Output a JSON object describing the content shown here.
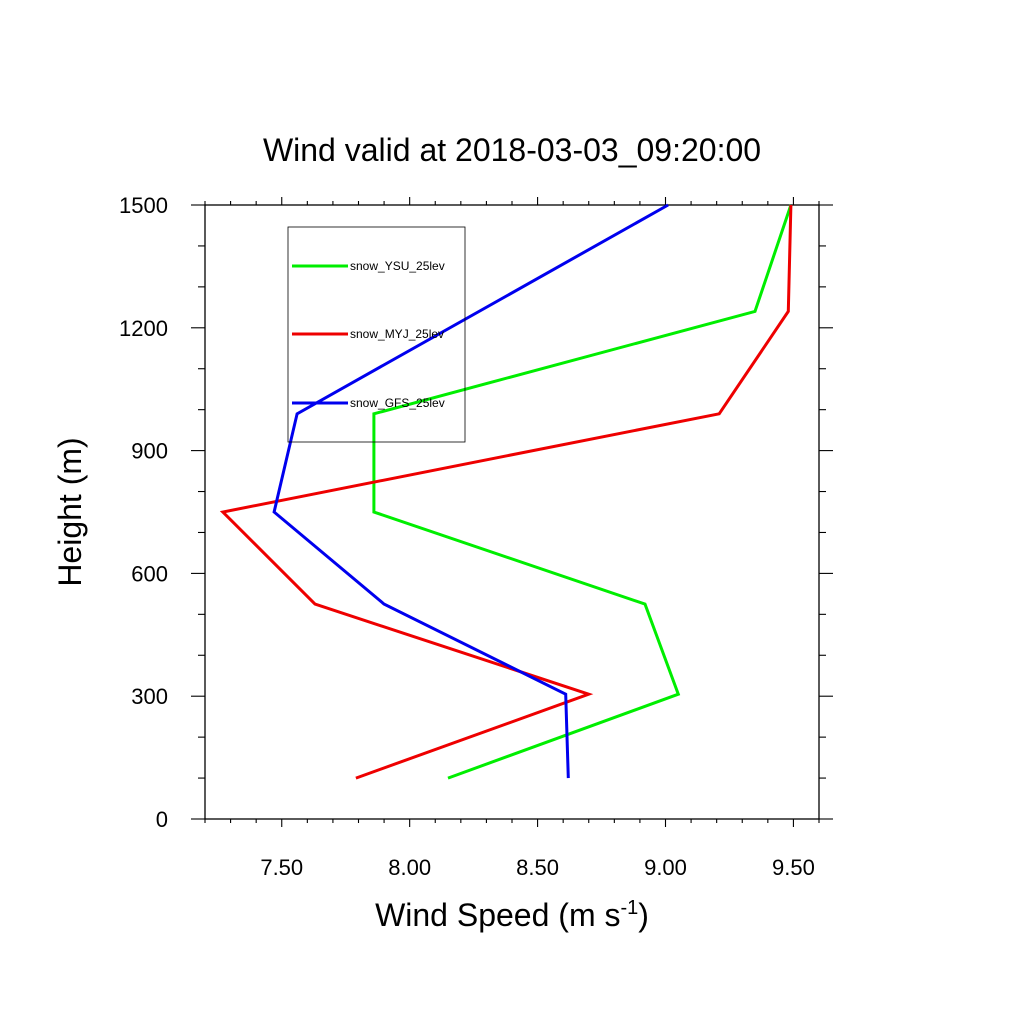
{
  "chart_data": {
    "type": "line",
    "title": "Wind valid at 2018-03-03_09:20:00",
    "xlabel": "Wind Speed (m s",
    "xlabel_sup": "-1",
    "xlabel_end": ")",
    "ylabel": "Height (m)",
    "xlim": [
      7.2,
      9.6
    ],
    "ylim": [
      0,
      1500
    ],
    "x_ticks": [
      7.5,
      8.0,
      8.5,
      9.0,
      9.5
    ],
    "x_tick_labels": [
      "7.50",
      "8.00",
      "8.50",
      "9.00",
      "9.50"
    ],
    "y_ticks": [
      0,
      300,
      600,
      900,
      1200,
      1500
    ],
    "y_tick_labels": [
      "0",
      "300",
      "600",
      "900",
      "1200",
      "1500"
    ],
    "series": [
      {
        "name": "snow_YSU_25lev",
        "color": "#00ee00",
        "points": [
          [
            8.15,
            100
          ],
          [
            9.05,
            305
          ],
          [
            8.92,
            525
          ],
          [
            7.86,
            750
          ],
          [
            7.86,
            990
          ],
          [
            9.35,
            1240
          ],
          [
            9.49,
            1500
          ]
        ]
      },
      {
        "name": "snow_MYJ_25lev",
        "color": "#ee0000",
        "points": [
          [
            7.79,
            100
          ],
          [
            8.7,
            305
          ],
          [
            7.63,
            525
          ],
          [
            7.27,
            750
          ],
          [
            9.21,
            990
          ],
          [
            9.48,
            1240
          ],
          [
            9.49,
            1500
          ]
        ]
      },
      {
        "name": "snow_GFS_25lev",
        "color": "#0000ee",
        "points": [
          [
            8.62,
            100
          ],
          [
            8.61,
            305
          ],
          [
            7.9,
            525
          ],
          [
            7.47,
            750
          ],
          [
            7.56,
            990
          ],
          [
            9.01,
            1500
          ]
        ]
      }
    ],
    "grid": false,
    "legend_position": "top-left"
  }
}
